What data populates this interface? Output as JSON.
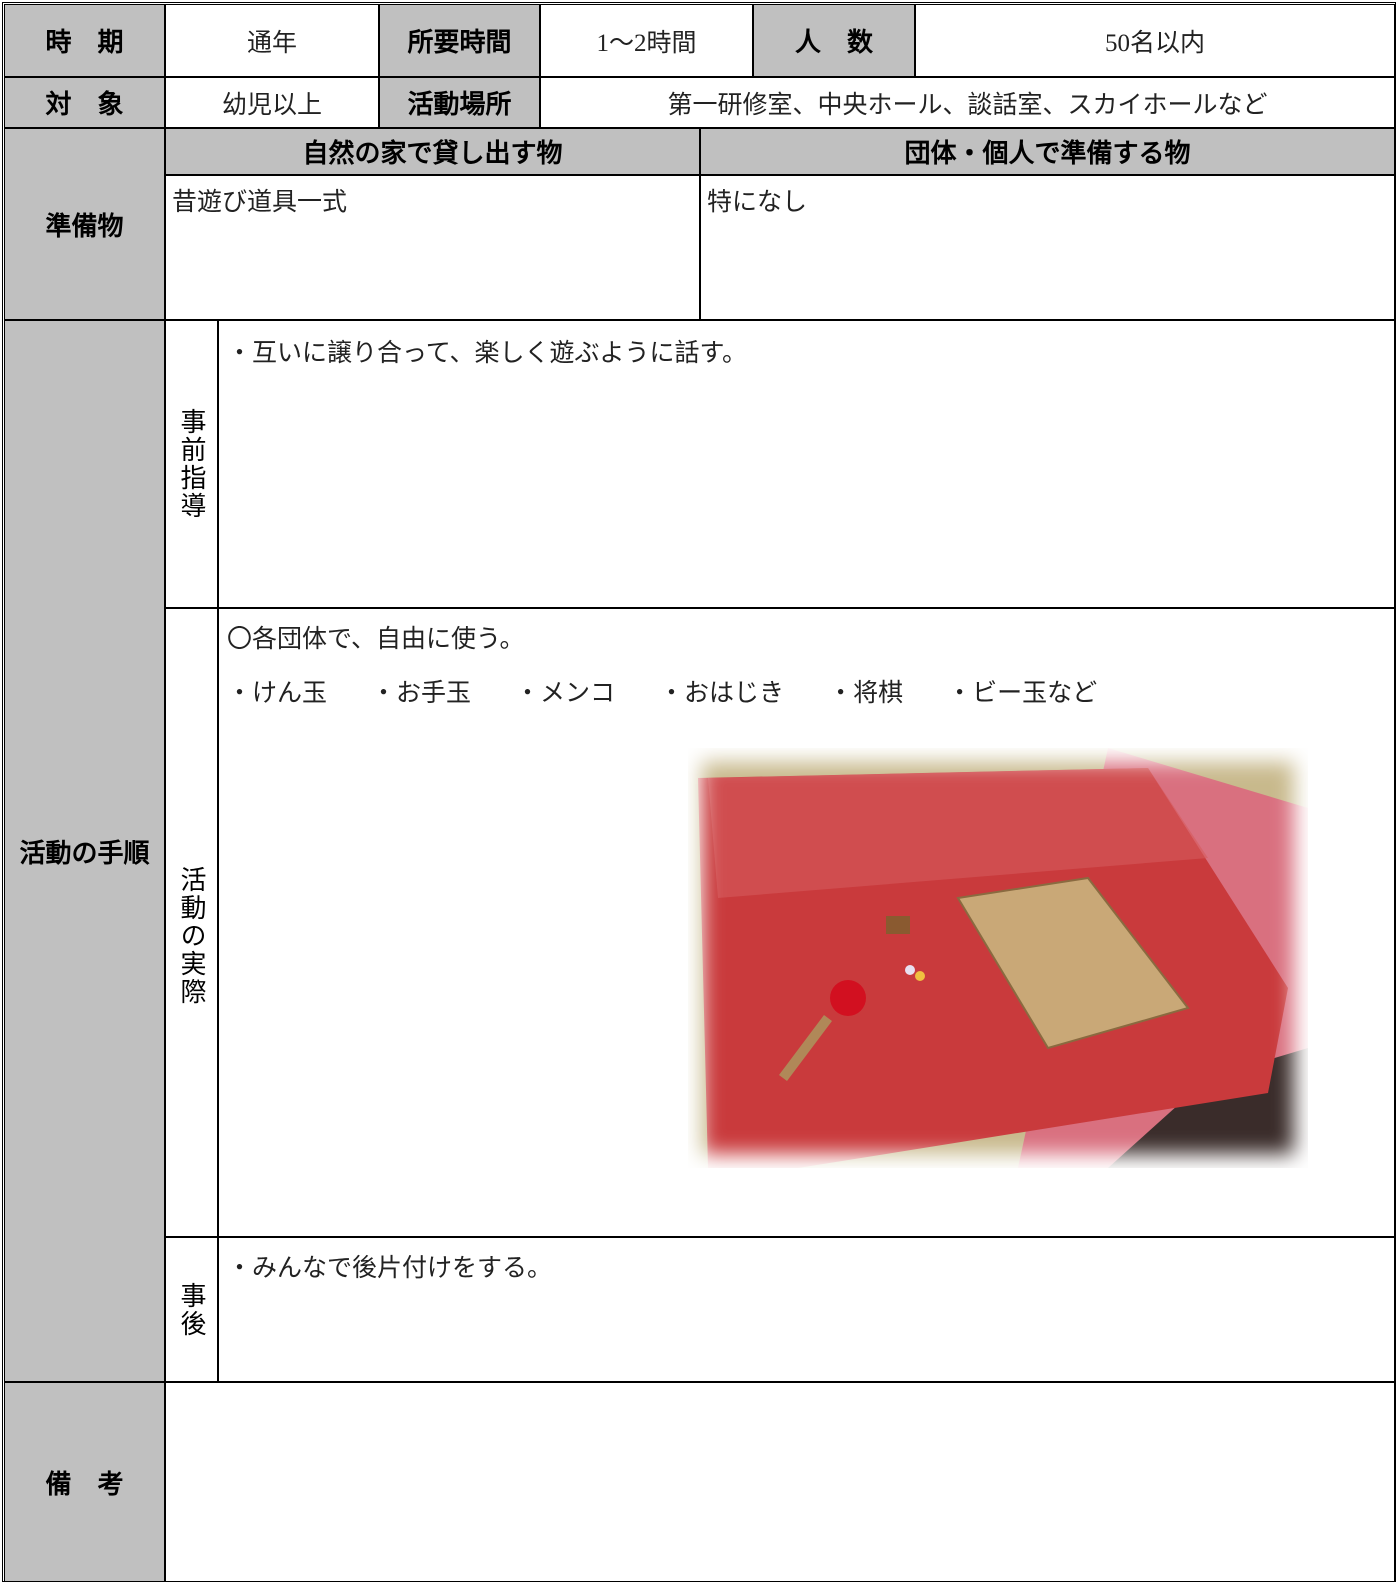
{
  "header": {
    "period_label": "時　期",
    "period": "通年",
    "duration_label": "所要時間",
    "duration": "1〜2時間",
    "people_label": "人　数",
    "people": "50名以内",
    "target_label": "対　象",
    "target": "幼児以上",
    "place_label": "活動場所",
    "place": "第一研修室、中央ホール、談話室、スカイホールなど"
  },
  "preparation": {
    "label": "準備物",
    "lend_header": "自然の家で貸し出す物",
    "own_header": "団体・個人で準備する物",
    "lend": "昔遊び道具一式",
    "own": "特になし"
  },
  "procedure": {
    "label": "活動の手順",
    "before": {
      "label": "事前指導",
      "text": "・互いに譲り合って、楽しく遊ぶように話す。"
    },
    "during": {
      "label": "活動の実際",
      "text": "〇各団体で、自由に使う。",
      "items": [
        "・けん玉",
        "・お手玉",
        "・メンコ",
        "・おはじき",
        "・将棋",
        "・ビー玉など"
      ]
    },
    "after": {
      "label": "事後",
      "text": "・みんなで後片付けをする。"
    }
  },
  "remarks": {
    "label": "備　考"
  }
}
